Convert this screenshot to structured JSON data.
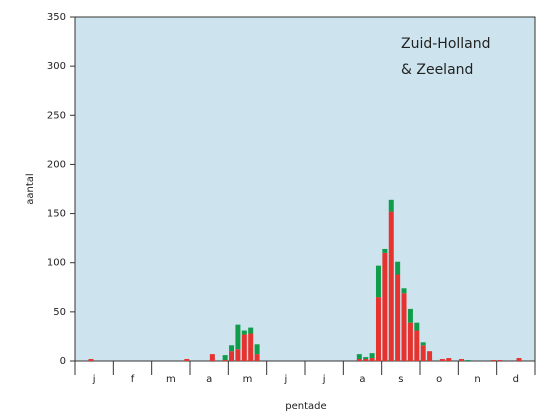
{
  "chart_data": {
    "type": "stacked_bar",
    "annotations": [
      "Zuid-Holland",
      "& Zeeland"
    ],
    "xlabel": "pentade",
    "ylabel": "aantal",
    "months": [
      "j",
      "f",
      "m",
      "a",
      "m",
      "j",
      "j",
      "a",
      "s",
      "o",
      "n",
      "d"
    ],
    "categories": [
      null,
      null,
      null,
      null,
      null,
      null,
      null,
      null,
      null,
      null,
      null,
      null,
      null,
      null,
      null,
      null,
      null,
      null,
      null,
      null,
      null,
      null,
      null,
      null,
      null,
      null,
      null,
      null,
      null,
      null,
      null,
      null,
      null,
      null,
      null,
      null,
      null,
      null,
      null,
      null,
      null,
      null,
      null,
      null,
      null,
      null,
      null,
      null,
      null,
      null,
      null,
      null,
      null,
      null,
      null,
      null,
      null,
      null,
      null,
      null,
      null,
      null,
      null,
      null,
      null,
      null,
      null,
      null,
      null,
      null,
      null,
      null
    ],
    "series": [
      {
        "color": "#e5332f",
        "values": [
          0,
          0,
          2,
          0,
          0,
          0,
          0,
          0,
          0,
          0,
          0,
          0,
          0,
          0,
          0,
          0,
          0,
          2,
          0,
          0,
          0,
          7,
          0,
          1,
          10,
          12,
          27,
          28,
          7,
          0,
          0,
          0,
          0,
          0,
          0,
          0,
          0,
          0,
          0,
          0,
          0,
          0,
          0,
          0,
          2,
          2,
          3,
          65,
          110,
          152,
          88,
          69,
          39,
          31,
          16,
          10,
          0,
          2,
          3,
          0,
          2,
          0,
          0,
          0,
          0,
          1,
          1,
          0,
          0,
          3,
          0,
          0
        ]
      },
      {
        "color": "#109d4b",
        "values": [
          0,
          0,
          0,
          0,
          0,
          0,
          0,
          0,
          0,
          0,
          0,
          0,
          0,
          0,
          0,
          0,
          0,
          0,
          0,
          0,
          0,
          0,
          0,
          5,
          6,
          25,
          4,
          6,
          10,
          0,
          0,
          0,
          0,
          0,
          0,
          0,
          0,
          0,
          0,
          0,
          0,
          0,
          0,
          0,
          5,
          2,
          5,
          32,
          4,
          12,
          13,
          5,
          14,
          8,
          3,
          0,
          0,
          0,
          0,
          0,
          0,
          1,
          0,
          0,
          0,
          0,
          0,
          0,
          0,
          0,
          0,
          0
        ]
      }
    ],
    "ylim": [
      0,
      350
    ],
    "yticks": [
      0,
      50,
      100,
      150,
      200,
      250,
      300,
      350
    ],
    "background": "#cde3ee",
    "annotation_color": "#2b4f91"
  }
}
